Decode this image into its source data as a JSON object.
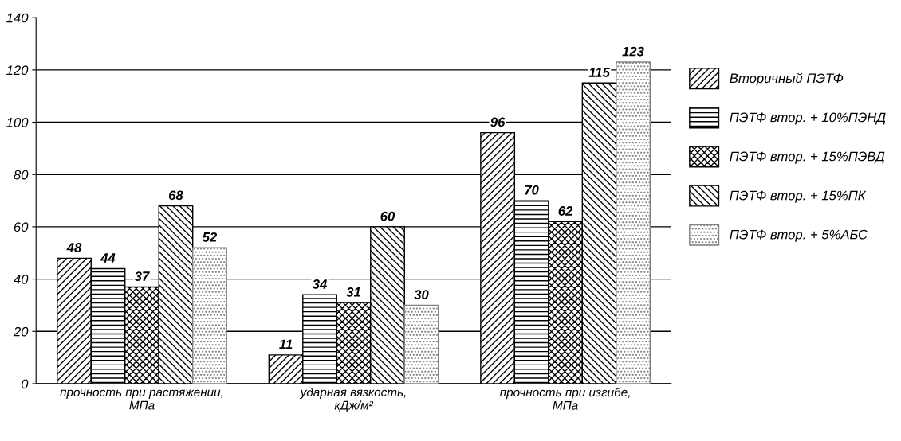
{
  "chart_data": {
    "type": "bar",
    "categories": [
      "прочность при растяжении,\nМПа",
      "ударная вязкость,\nкДж/м²",
      "прочность при изгибе,\nМПа"
    ],
    "series": [
      {
        "name": "Вторичный ПЭТФ",
        "color": "#000000",
        "values": [
          48,
          11,
          96
        ]
      },
      {
        "name": "ПЭТФ втор. + 10%ПЭНД",
        "color": "#000000",
        "values": [
          44,
          34,
          70
        ]
      },
      {
        "name": "ПЭТФ втор. + 15%ПЭВД",
        "color": "#000000",
        "values": [
          37,
          31,
          62
        ]
      },
      {
        "name": "ПЭТФ втор. + 15%ПК",
        "color": "#000000",
        "values": [
          68,
          60,
          115
        ]
      },
      {
        "name": "ПЭТФ втор. + 5%АБС",
        "color": "#808080",
        "values": [
          52,
          30,
          123
        ]
      }
    ],
    "ylim": [
      0,
      140
    ],
    "yticks": [
      0,
      20,
      40,
      60,
      80,
      100,
      120,
      140
    ],
    "grid": "y",
    "legend": "right",
    "data_labels": true
  }
}
